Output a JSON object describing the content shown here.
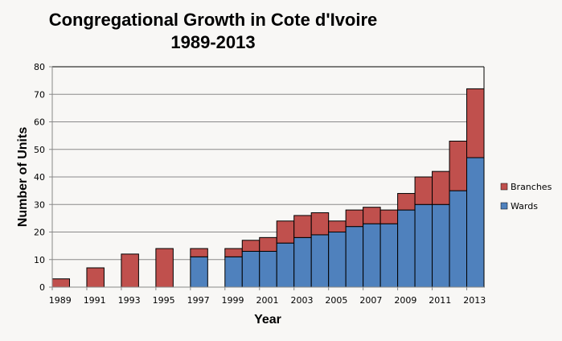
{
  "chart_data": {
    "type": "bar",
    "stacked": true,
    "title": "Congregational Growth in Cote d'Ivoire",
    "subtitle": "1989-2013",
    "xlabel": "Year",
    "ylabel": "Number of Units",
    "ylim": [
      0,
      80
    ],
    "yticks": [
      0,
      10,
      20,
      30,
      40,
      50,
      60,
      70,
      80
    ],
    "grid": true,
    "legend_position": "right",
    "categories": [
      1989,
      1990,
      1991,
      1992,
      1993,
      1994,
      1995,
      1996,
      1997,
      1998,
      1999,
      2000,
      2001,
      2002,
      2003,
      2004,
      2005,
      2006,
      2007,
      2008,
      2009,
      2010,
      2011,
      2012,
      2013
    ],
    "xtick_labels": [
      "1989",
      "1991",
      "1993",
      "1995",
      "1997",
      "1999",
      "2001",
      "2003",
      "2005",
      "2007",
      "2009",
      "2011",
      "2013"
    ],
    "series": [
      {
        "name": "Wards",
        "color": "#4f81bd",
        "values": [
          0,
          null,
          0,
          null,
          0,
          null,
          0,
          null,
          11,
          null,
          11,
          13,
          13,
          16,
          18,
          19,
          20,
          22,
          23,
          23,
          28,
          30,
          30,
          35,
          47
        ]
      },
      {
        "name": "Branches",
        "color": "#c0504d",
        "values": [
          3,
          null,
          7,
          null,
          12,
          null,
          14,
          null,
          3,
          null,
          3,
          4,
          5,
          8,
          8,
          8,
          4,
          6,
          6,
          5,
          6,
          10,
          12,
          18,
          25
        ]
      }
    ],
    "legend_order": [
      "Branches",
      "Wards"
    ]
  }
}
